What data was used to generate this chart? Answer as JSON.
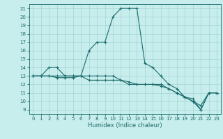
{
  "title": "",
  "xlabel": "Humidex (Indice chaleur)",
  "bg_color": "#c8eded",
  "line_color": "#1a6b6b",
  "grid_color": "#a8d8d8",
  "xlim": [
    -0.5,
    23.5
  ],
  "ylim": [
    8.5,
    21.5
  ],
  "xticks": [
    0,
    1,
    2,
    3,
    4,
    5,
    6,
    7,
    8,
    9,
    10,
    11,
    12,
    13,
    14,
    15,
    16,
    17,
    18,
    19,
    20,
    21,
    22,
    23
  ],
  "yticks": [
    9,
    10,
    11,
    12,
    13,
    14,
    15,
    16,
    17,
    18,
    19,
    20,
    21
  ],
  "line1_x": [
    0,
    1,
    2,
    3,
    4,
    5,
    6,
    7,
    8,
    9,
    10,
    11,
    12,
    13,
    14,
    15,
    16,
    17,
    18,
    19,
    20,
    21,
    22,
    23
  ],
  "line1_y": [
    13,
    13,
    14,
    14,
    13,
    13,
    13,
    16,
    17,
    17,
    20,
    21,
    21,
    21,
    14.5,
    14,
    13,
    12,
    11.5,
    10.5,
    10.3,
    9,
    11,
    11
  ],
  "line2_x": [
    0,
    1,
    2,
    3,
    4,
    5,
    6,
    7,
    8,
    9,
    10,
    11,
    12,
    13,
    14,
    15,
    16,
    17,
    18,
    19,
    20,
    21,
    22,
    23
  ],
  "line2_y": [
    13,
    13,
    13,
    12.8,
    12.8,
    12.8,
    13,
    12.5,
    12.5,
    12.5,
    12.5,
    12.5,
    12,
    12,
    12,
    12,
    12,
    11.5,
    11,
    10.5,
    10,
    9,
    11,
    11
  ],
  "line3_x": [
    0,
    1,
    2,
    3,
    4,
    5,
    6,
    7,
    8,
    9,
    10,
    11,
    12,
    13,
    14,
    15,
    16,
    17,
    18,
    19,
    20,
    21,
    22,
    23
  ],
  "line3_y": [
    13,
    13,
    13,
    13,
    13,
    13,
    13,
    13,
    13,
    13,
    13,
    12.5,
    12.3,
    12,
    12,
    12,
    11.8,
    11.5,
    11,
    10.5,
    10,
    9.5,
    11,
    11
  ],
  "lw": 0.8,
  "ms": 2.5,
  "xlabel_fontsize": 6.0,
  "tick_fontsize": 5.0
}
